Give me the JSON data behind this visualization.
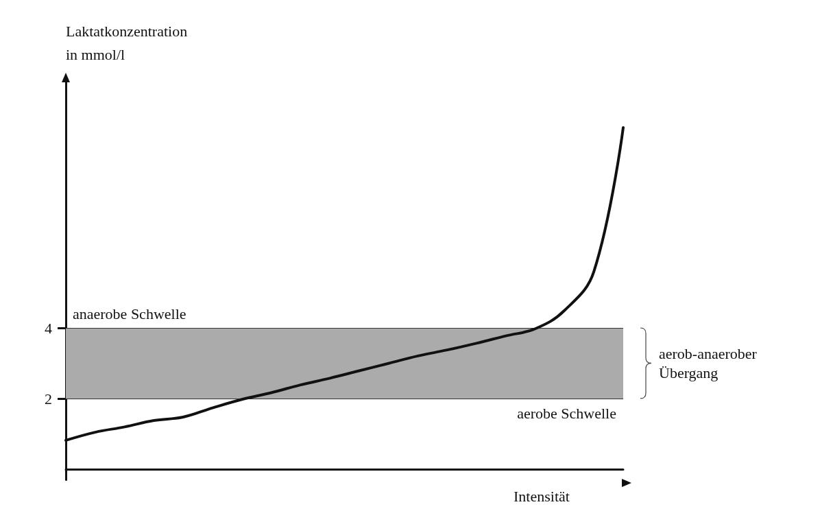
{
  "chart_data": {
    "type": "line",
    "ylabel": "Laktatkonzentration\nin mmol/l",
    "xlabel": "Intensität",
    "categories": [
      null,
      null,
      null,
      null,
      null,
      null,
      null,
      null,
      null,
      null,
      null,
      null,
      null,
      null,
      null,
      null,
      null,
      null,
      null,
      null
    ],
    "series": [
      {
        "color": "#111111",
        "values": [
          0.82,
          1.05,
          1.2,
          1.38,
          1.48,
          1.74,
          1.98,
          2.17,
          2.39,
          2.58,
          2.79,
          3.0,
          3.21,
          3.38,
          3.57,
          3.78,
          3.98,
          4.5,
          5.6,
          9.68
        ]
      }
    ],
    "ylim": [
      -0.3,
      11
    ],
    "yticks": [
      2,
      4
    ],
    "ref_lines": [
      {
        "axis": "y",
        "value": 4,
        "label": "anaerobe Schwelle",
        "color": "#333333"
      },
      {
        "axis": "y",
        "value": 2,
        "label": "aerobe Schwelle",
        "color": "#333333"
      }
    ],
    "bands": [
      {
        "axis": "y",
        "from": 2,
        "to": 4,
        "label": "aerob-anaerober Übergang",
        "color": "#ababab"
      }
    ],
    "grid": false,
    "marker": "none",
    "line_style": "solid"
  }
}
